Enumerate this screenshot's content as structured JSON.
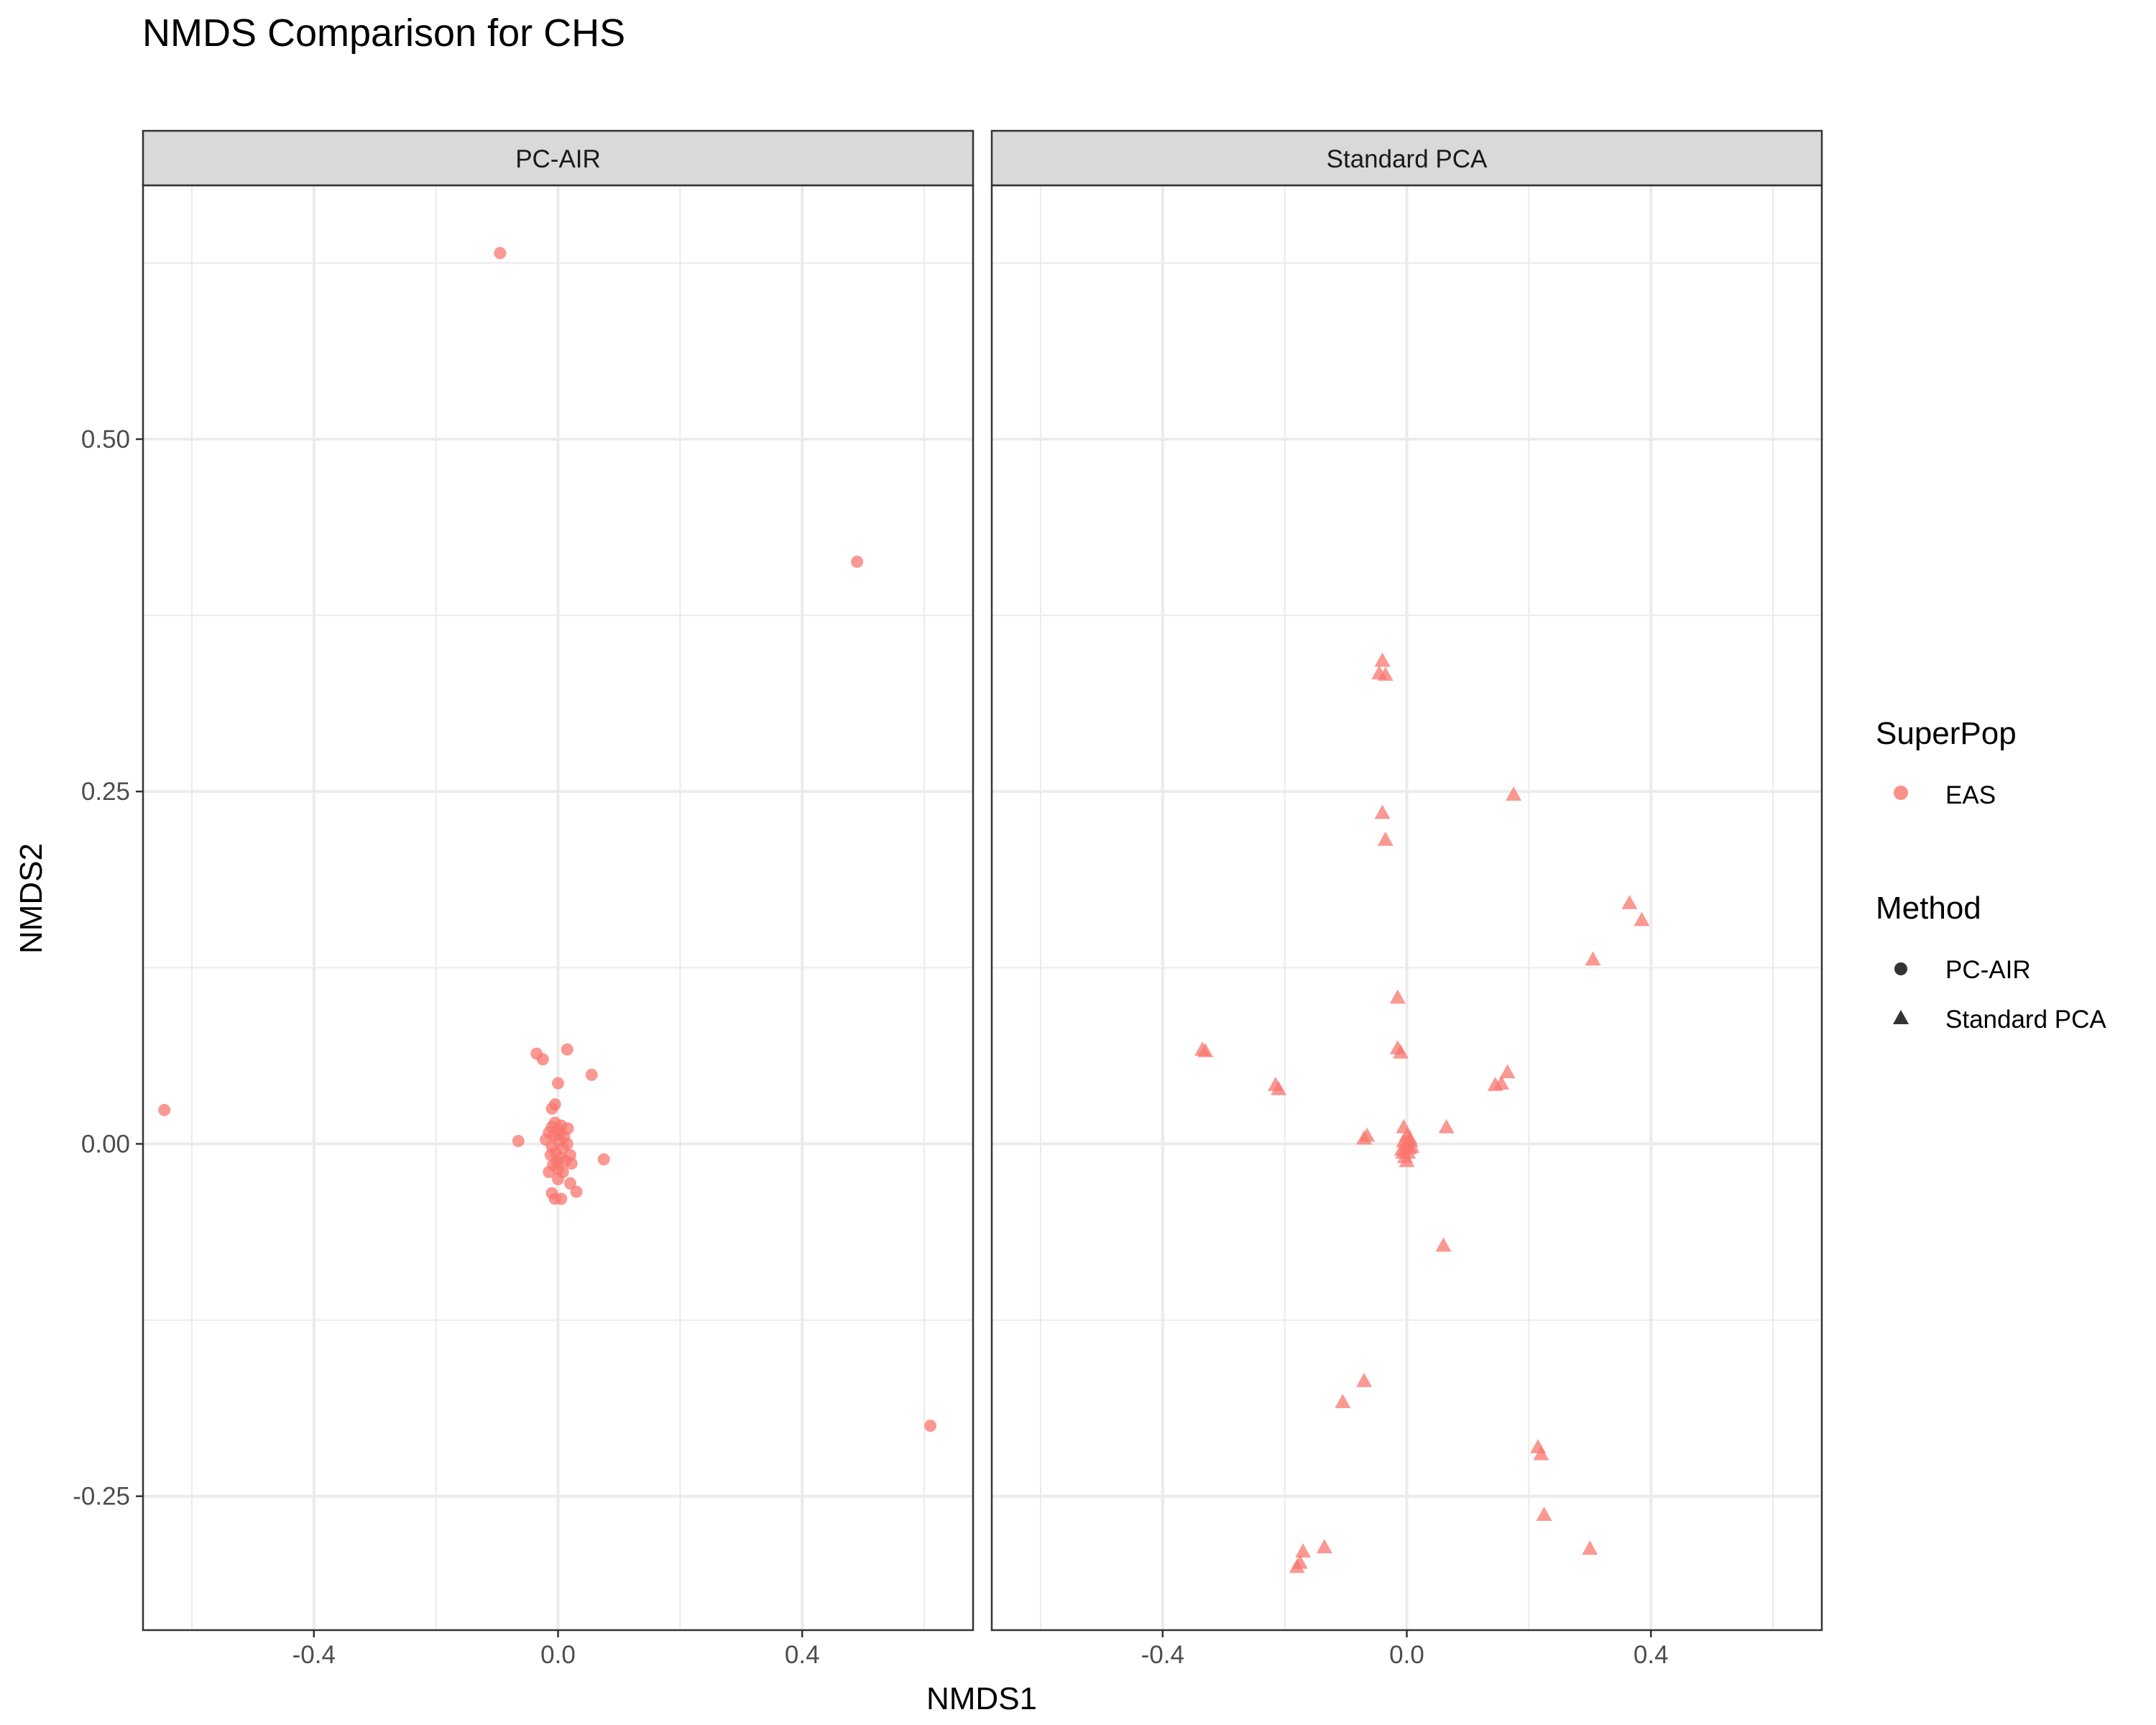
{
  "chart_data": {
    "type": "scatter",
    "title": "NMDS Comparison for CHS",
    "xlabel": "NMDS1",
    "ylabel": "NMDS2",
    "xlim": [
      -0.68,
      0.68
    ],
    "ylim": [
      -0.345,
      0.68
    ],
    "x_ticks": [
      -0.4,
      0.0,
      0.4
    ],
    "x_tick_labels": [
      "-0.4",
      "0.0",
      "0.4"
    ],
    "x_minor_ticks": [
      -0.6,
      -0.2,
      0.2,
      0.6
    ],
    "y_ticks": [
      -0.25,
      0.0,
      0.25,
      0.5
    ],
    "y_tick_labels": [
      "-0.25",
      "0.00",
      "0.25",
      "0.50"
    ],
    "y_minor_ticks": [
      -0.125,
      0.125,
      0.375,
      0.625
    ],
    "grid": true,
    "point_color": "#F8766D",
    "legend_placement": "right",
    "legend": {
      "color_title": "SuperPop",
      "color_items": [
        {
          "label": "EAS",
          "color": "#F8766D"
        }
      ],
      "shape_title": "Method",
      "shape_items": [
        {
          "label": "PC-AIR",
          "shape": "circle"
        },
        {
          "label": "Standard PCA",
          "shape": "triangle"
        }
      ]
    },
    "panels": [
      {
        "name": "PC-AIR",
        "shape": "circle",
        "points": [
          [
            -0.095,
            0.632
          ],
          [
            0.49,
            0.413
          ],
          [
            -0.645,
            0.024
          ],
          [
            0.61,
            -0.2
          ],
          [
            -0.035,
            0.064
          ],
          [
            -0.025,
            0.06
          ],
          [
            0.015,
            0.067
          ],
          [
            0.055,
            0.049
          ],
          [
            0.0,
            0.043
          ],
          [
            -0.01,
            0.025
          ],
          [
            -0.005,
            0.028
          ],
          [
            -0.065,
            0.002
          ],
          [
            0.075,
            -0.011
          ],
          [
            0.03,
            -0.034
          ],
          [
            0.02,
            -0.028
          ],
          [
            -0.01,
            -0.035
          ],
          [
            -0.005,
            -0.039
          ],
          [
            0.005,
            -0.039
          ],
          [
            0.0,
            -0.025
          ],
          [
            -0.01,
            0.012
          ],
          [
            -0.015,
            0.008
          ],
          [
            -0.005,
            0.015
          ],
          [
            0.0,
            0.01
          ],
          [
            0.005,
            0.013
          ],
          [
            0.01,
            0.005
          ],
          [
            -0.02,
            0.003
          ],
          [
            -0.01,
            -0.002
          ],
          [
            0.0,
            0.002
          ],
          [
            0.008,
            -0.003
          ],
          [
            0.015,
            0.0
          ],
          [
            -0.012,
            -0.008
          ],
          [
            -0.004,
            -0.006
          ],
          [
            0.004,
            -0.01
          ],
          [
            0.012,
            -0.012
          ],
          [
            -0.008,
            -0.015
          ],
          [
            0.0,
            -0.018
          ],
          [
            0.008,
            -0.02
          ],
          [
            0.02,
            -0.008
          ],
          [
            0.022,
            -0.014
          ],
          [
            -0.015,
            -0.02
          ],
          [
            -0.006,
            0.006
          ],
          [
            0.003,
            0.007
          ],
          [
            0.016,
            0.011
          ],
          [
            -0.002,
            -0.013
          ]
        ]
      },
      {
        "name": "Standard PCA",
        "shape": "triangle",
        "points": [
          [
            -0.04,
            0.343
          ],
          [
            -0.045,
            0.334
          ],
          [
            -0.035,
            0.333
          ],
          [
            -0.04,
            0.235
          ],
          [
            -0.035,
            0.216
          ],
          [
            0.175,
            0.248
          ],
          [
            0.365,
            0.171
          ],
          [
            0.385,
            0.159
          ],
          [
            0.305,
            0.131
          ],
          [
            -0.015,
            0.104
          ],
          [
            -0.335,
            0.067
          ],
          [
            -0.33,
            0.066
          ],
          [
            -0.015,
            0.068
          ],
          [
            -0.01,
            0.065
          ],
          [
            -0.215,
            0.042
          ],
          [
            -0.21,
            0.039
          ],
          [
            0.165,
            0.051
          ],
          [
            0.145,
            0.042
          ],
          [
            0.155,
            0.043
          ],
          [
            -0.065,
            0.006
          ],
          [
            -0.07,
            0.004
          ],
          [
            0.065,
            0.012
          ],
          [
            -0.005,
            0.012
          ],
          [
            0.06,
            -0.072
          ],
          [
            -0.07,
            -0.168
          ],
          [
            -0.105,
            -0.183
          ],
          [
            0.215,
            -0.215
          ],
          [
            0.22,
            -0.22
          ],
          [
            0.225,
            -0.263
          ],
          [
            0.3,
            -0.287
          ],
          [
            -0.135,
            -0.286
          ],
          [
            -0.17,
            -0.289
          ],
          [
            -0.175,
            -0.297
          ],
          [
            -0.18,
            -0.3
          ],
          [
            0.0,
            0.006
          ],
          [
            0.005,
            0.004
          ],
          [
            -0.005,
            0.002
          ],
          [
            0.0,
            0.0
          ],
          [
            0.008,
            -0.002
          ],
          [
            -0.008,
            -0.004
          ],
          [
            0.002,
            -0.006
          ],
          [
            0.006,
            0.002
          ],
          [
            -0.003,
            -0.009
          ],
          [
            0.004,
            -0.003
          ],
          [
            0.0,
            -0.012
          ],
          [
            -0.006,
            -0.006
          ]
        ]
      }
    ]
  }
}
